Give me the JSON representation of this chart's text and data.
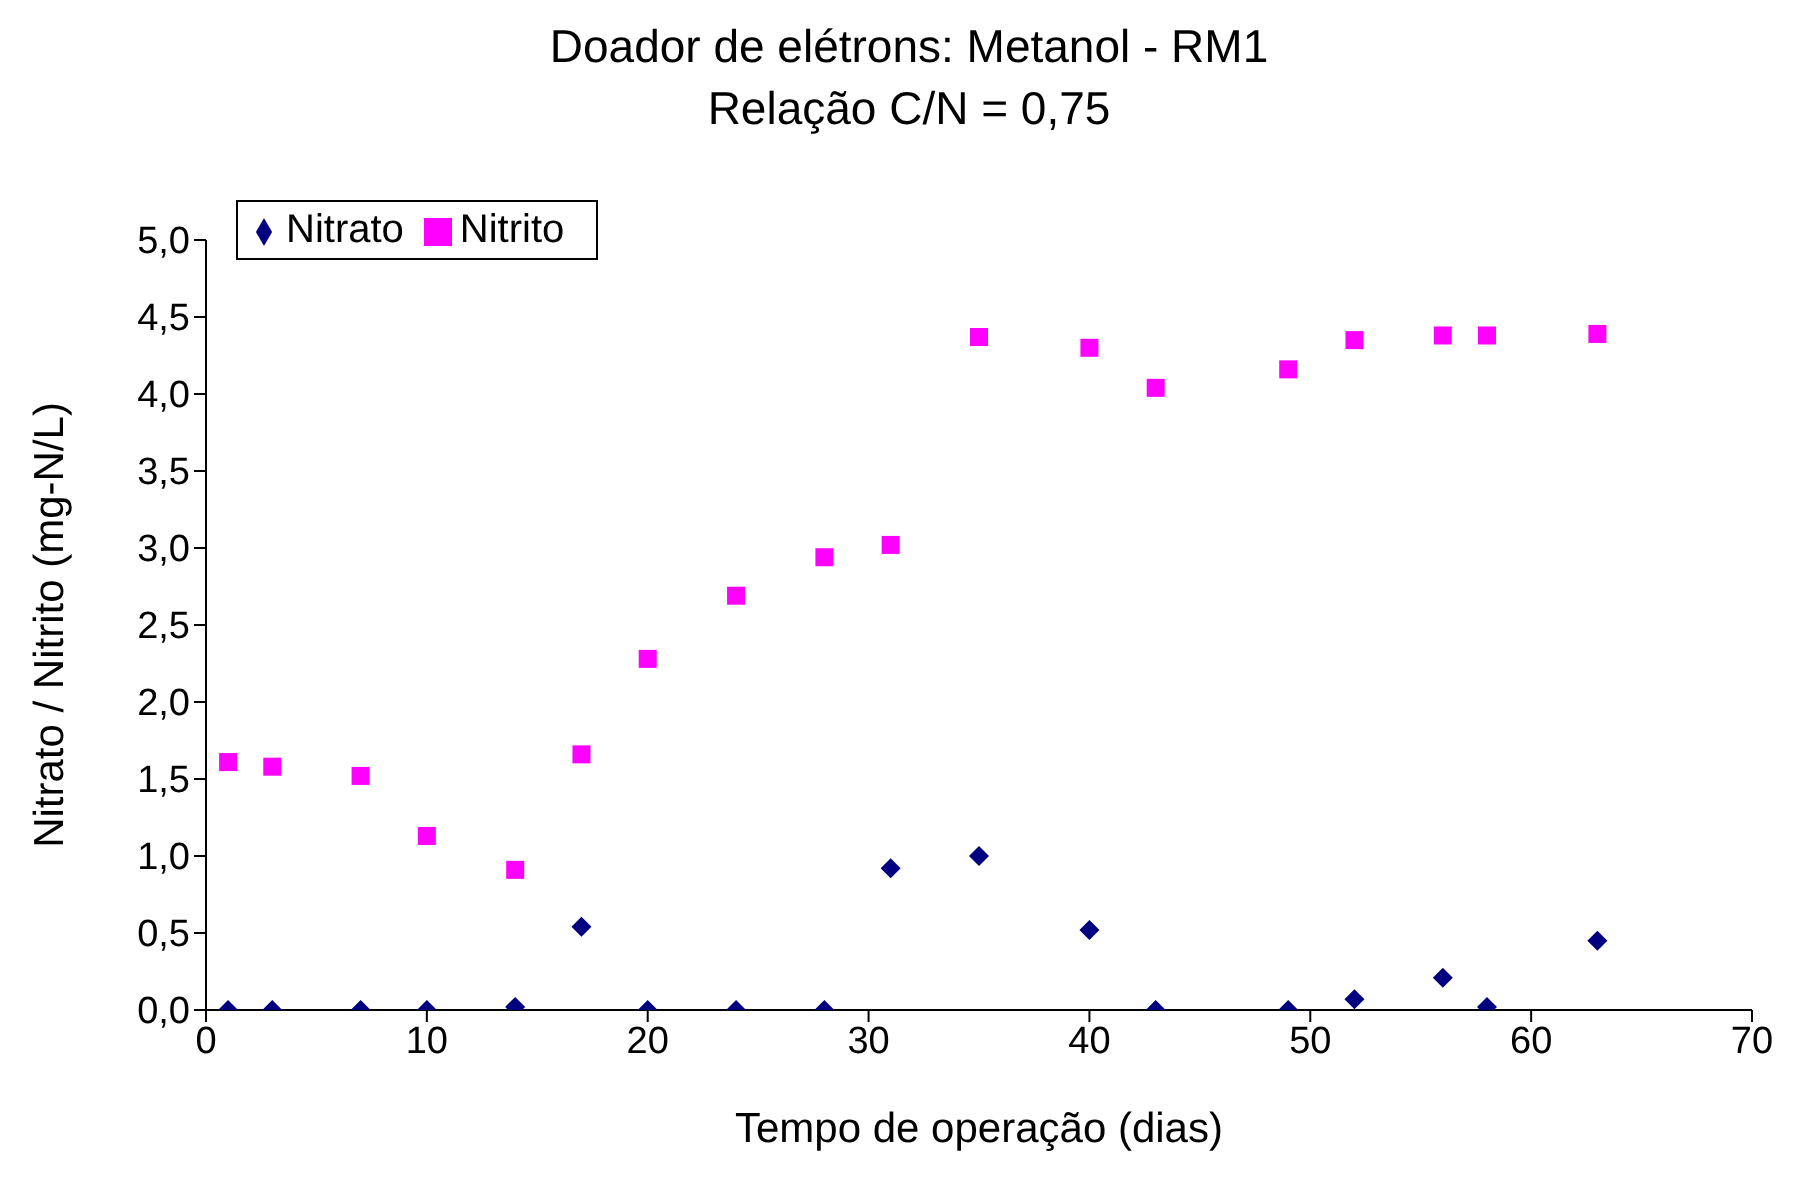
{
  "chart_data": {
    "type": "scatter",
    "title": "Doador de elétrons: Metanol - RM1",
    "subtitle": "Relação C/N = 0,75",
    "xlabel": "Tempo de operação (dias)",
    "ylabel": "Nitrato / Nitrito (mg-N/L)",
    "x": [
      1,
      3,
      7,
      10,
      14,
      17,
      20,
      24,
      28,
      31,
      35,
      40,
      43,
      49,
      52,
      56,
      58,
      63
    ],
    "series": [
      {
        "name": "Nitrato",
        "color": "#000080",
        "marker": "diamond",
        "values": [
          0,
          0,
          0,
          0,
          0.02,
          0.54,
          0,
          0,
          0,
          0.92,
          1.0,
          0.52,
          0,
          0,
          0.07,
          0.21,
          0.02,
          0.45
        ]
      },
      {
        "name": "Nitrito",
        "color": "#ff00ff",
        "marker": "square",
        "values": [
          1.61,
          1.58,
          1.52,
          1.13,
          0.91,
          1.66,
          2.28,
          2.69,
          2.94,
          3.02,
          4.37,
          4.3,
          4.04,
          4.16,
          4.35,
          4.38,
          4.38,
          4.39
        ]
      }
    ],
    "xlim": [
      0,
      70
    ],
    "xticks": [
      0,
      10,
      20,
      30,
      40,
      50,
      60,
      70
    ],
    "ylim": [
      0,
      5
    ],
    "yticks": [
      {
        "value": 0,
        "label": "0,0"
      },
      {
        "value": 0.5,
        "label": "0,5"
      },
      {
        "value": 1,
        "label": "1,0"
      },
      {
        "value": 1.5,
        "label": "1,5"
      },
      {
        "value": 2,
        "label": "2,0"
      },
      {
        "value": 2.5,
        "label": "2,5"
      },
      {
        "value": 3,
        "label": "3,0"
      },
      {
        "value": 3.5,
        "label": "3,5"
      },
      {
        "value": 4,
        "label": "4,0"
      },
      {
        "value": 4.5,
        "label": "4,5"
      },
      {
        "value": 5,
        "label": "5,0"
      }
    ],
    "grid": false,
    "legend": "top left"
  }
}
